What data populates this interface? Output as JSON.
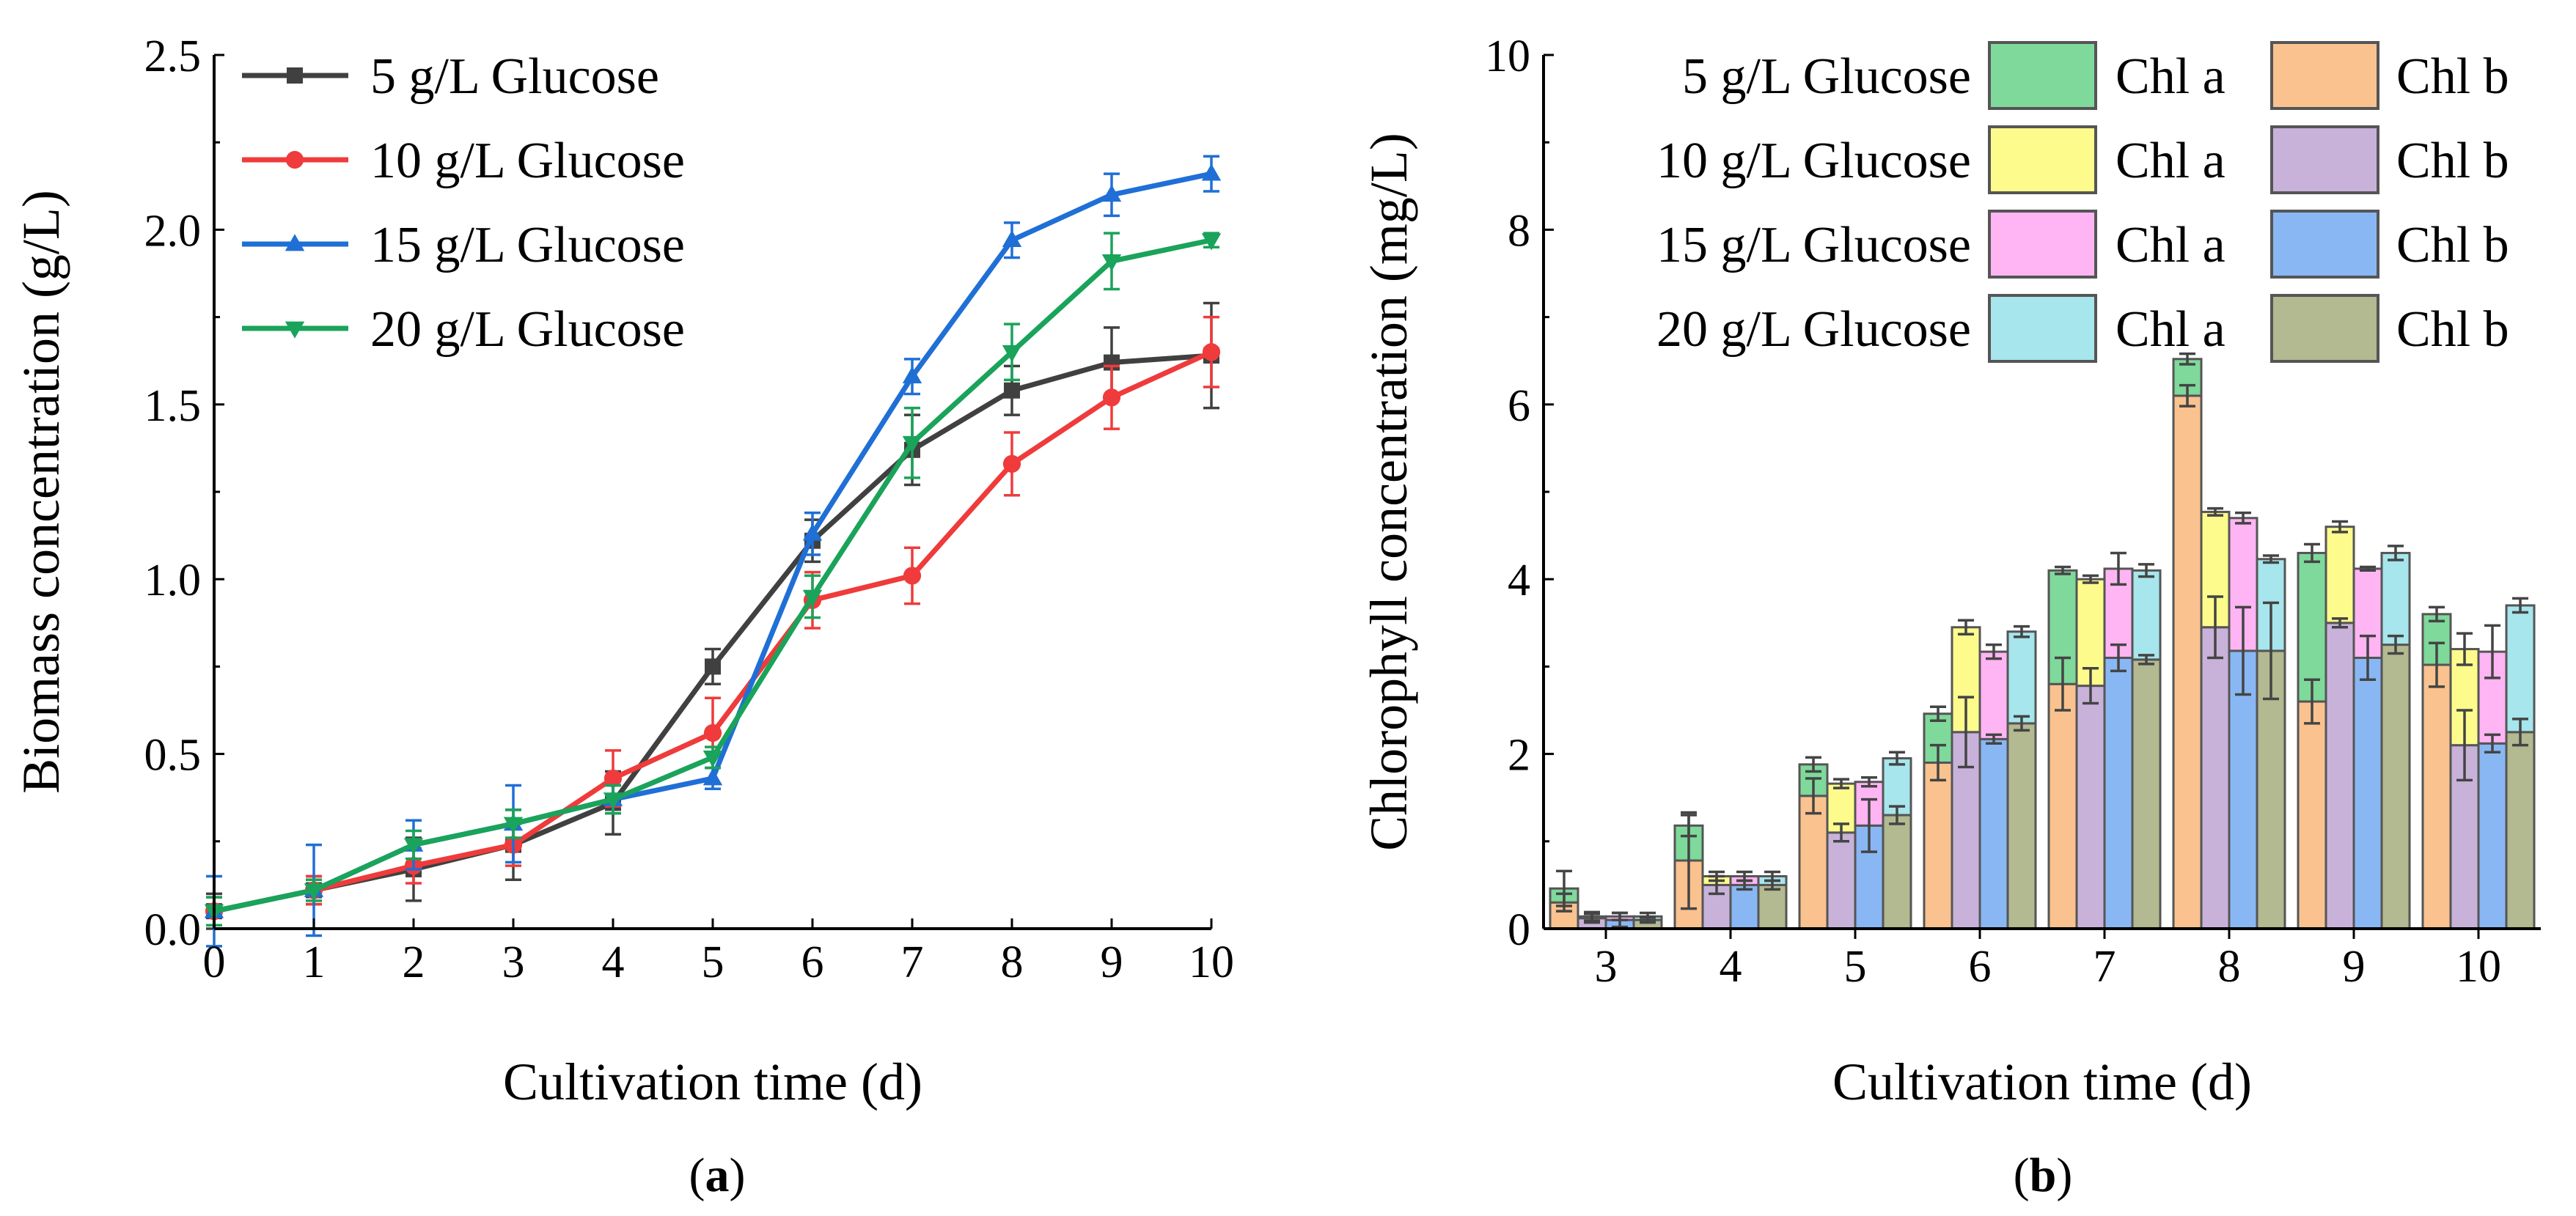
{
  "panels": {
    "a": "a",
    "b": "b"
  },
  "chart_data": [
    {
      "type": "line",
      "xlabel": "Cultivation time (d)",
      "ylabel": "Biomass concentration (g/L)",
      "xlim": [
        0,
        10
      ],
      "ylim": [
        0,
        2.5
      ],
      "xticks": [
        "0",
        "1",
        "2",
        "3",
        "4",
        "5",
        "6",
        "7",
        "8",
        "9",
        "10"
      ],
      "yticks": [
        "0.0",
        "0.5",
        "1.0",
        "1.5",
        "2.0",
        "2.5"
      ],
      "x": [
        0,
        1,
        2,
        3,
        4,
        5,
        6,
        7,
        8,
        9,
        10
      ],
      "series": [
        {
          "name": "5 g/L Glucose",
          "label_text": "  5 g/L Glucose",
          "color": "#404040",
          "marker": "square",
          "values": [
            0.05,
            0.11,
            0.17,
            0.24,
            0.36,
            0.75,
            1.11,
            1.37,
            1.54,
            1.62,
            1.64
          ],
          "errors": [
            0.05,
            0.04,
            0.09,
            0.1,
            0.09,
            0.05,
            0.06,
            0.1,
            0.07,
            0.1,
            0.15
          ]
        },
        {
          "name": "10 g/L Glucose",
          "label_text": "10 g/L Glucose",
          "color": "#EF3B3B",
          "marker": "circle",
          "values": [
            0.05,
            0.11,
            0.18,
            0.24,
            0.43,
            0.56,
            0.94,
            1.01,
            1.33,
            1.52,
            1.65
          ],
          "errors": [
            0.04,
            0.04,
            0.05,
            0.06,
            0.08,
            0.1,
            0.08,
            0.08,
            0.09,
            0.09,
            0.1
          ]
        },
        {
          "name": "15 g/L Glucose",
          "label_text": "15 g/L Glucose",
          "color": "#1F6FD6",
          "marker": "triangle-up",
          "values": [
            0.05,
            0.11,
            0.24,
            0.3,
            0.37,
            0.43,
            1.13,
            1.58,
            1.97,
            2.1,
            2.16
          ],
          "errors": [
            0.1,
            0.13,
            0.07,
            0.11,
            0.04,
            0.03,
            0.06,
            0.05,
            0.05,
            0.06,
            0.05
          ]
        },
        {
          "name": "20 g/L Glucose",
          "label_text": "20 g/L Glucose",
          "color": "#1AA35A",
          "marker": "triangle-down",
          "values": [
            0.05,
            0.11,
            0.24,
            0.3,
            0.37,
            0.49,
            0.95,
            1.39,
            1.65,
            1.91,
            1.97
          ],
          "errors": [
            0.04,
            0.03,
            0.04,
            0.04,
            0.04,
            0.03,
            0.06,
            0.1,
            0.08,
            0.08,
            0.02
          ]
        }
      ]
    },
    {
      "type": "bar",
      "stacked": true,
      "xlabel": "Cultivation time (d)",
      "ylabel": "Chlorophyll concentration (mg/L)",
      "ylim": [
        0,
        10
      ],
      "yticks": [
        "0",
        "2",
        "4",
        "6",
        "8",
        "10"
      ],
      "categories": [
        "3",
        "4",
        "5",
        "6",
        "7",
        "8",
        "9",
        "10"
      ],
      "series": [
        {
          "name": "5 g/L Glucose",
          "label_text": " 5 g/L Glucose",
          "chl_a_label": "Chl a",
          "chl_b_label": "Chl b",
          "chl_a_color": "#7ED99B",
          "chl_b_color": "#F9C28F",
          "chl_b": [
            0.3,
            0.78,
            1.52,
            1.9,
            2.8,
            6.1,
            2.6,
            3.02
          ],
          "chl_a": [
            0.16,
            0.4,
            0.36,
            0.56,
            1.3,
            0.42,
            1.7,
            0.58
          ],
          "err_b": [
            0.1,
            0.55,
            0.2,
            0.2,
            0.3,
            0.12,
            0.25,
            0.25
          ],
          "err_total": [
            0.2,
            0.12,
            0.08,
            0.08,
            0.04,
            0.06,
            0.1,
            0.08
          ]
        },
        {
          "name": "10 g/L Glucose",
          "label_text": "10 g/L Glucose",
          "chl_a_label": "Chl a",
          "chl_b_label": "Chl b",
          "chl_a_color": "#FDFB8C",
          "chl_b_color": "#C8B2DA",
          "chl_b": [
            0.12,
            0.5,
            1.1,
            2.25,
            2.78,
            3.45,
            3.5,
            2.1
          ],
          "chl_a": [
            0.02,
            0.1,
            0.56,
            1.2,
            1.22,
            1.32,
            1.1,
            1.1
          ],
          "err_b": [
            0.05,
            0.1,
            0.1,
            0.4,
            0.2,
            0.35,
            0.05,
            0.4
          ],
          "err_total": [
            0.05,
            0.05,
            0.05,
            0.08,
            0.04,
            0.04,
            0.06,
            0.18
          ]
        },
        {
          "name": "15 g/L Glucose",
          "label_text": "15 g/L Glucose",
          "chl_a_label": "Chl a",
          "chl_b_label": "Chl b",
          "chl_a_color": "#FFB5F3",
          "chl_b_color": "#89B7F3",
          "chl_b": [
            0.1,
            0.5,
            1.18,
            2.17,
            3.1,
            3.18,
            3.1,
            2.12
          ],
          "chl_a": [
            0.04,
            0.1,
            0.5,
            1.0,
            1.02,
            1.52,
            1.02,
            1.05
          ],
          "err_b": [
            0.08,
            0.05,
            0.3,
            0.05,
            0.15,
            0.5,
            0.25,
            0.1
          ],
          "err_total": [
            0.04,
            0.05,
            0.05,
            0.08,
            0.18,
            0.06,
            0.02,
            0.3
          ]
        },
        {
          "name": "20 g/L Glucose",
          "label_text": "20 g/L Glucose",
          "chl_a_label": "Chl a",
          "chl_b_label": "Chl b",
          "chl_a_color": "#A6E6EC",
          "chl_b_color": "#B3B990",
          "chl_b": [
            0.1,
            0.5,
            1.3,
            2.35,
            3.08,
            3.18,
            3.25,
            2.25
          ],
          "chl_a": [
            0.04,
            0.1,
            0.65,
            1.05,
            1.02,
            1.05,
            1.05,
            1.45
          ],
          "err_b": [
            0.03,
            0.05,
            0.1,
            0.08,
            0.05,
            0.55,
            0.1,
            0.15
          ],
          "err_total": [
            0.04,
            0.05,
            0.07,
            0.06,
            0.07,
            0.04,
            0.08,
            0.08
          ]
        }
      ]
    }
  ]
}
